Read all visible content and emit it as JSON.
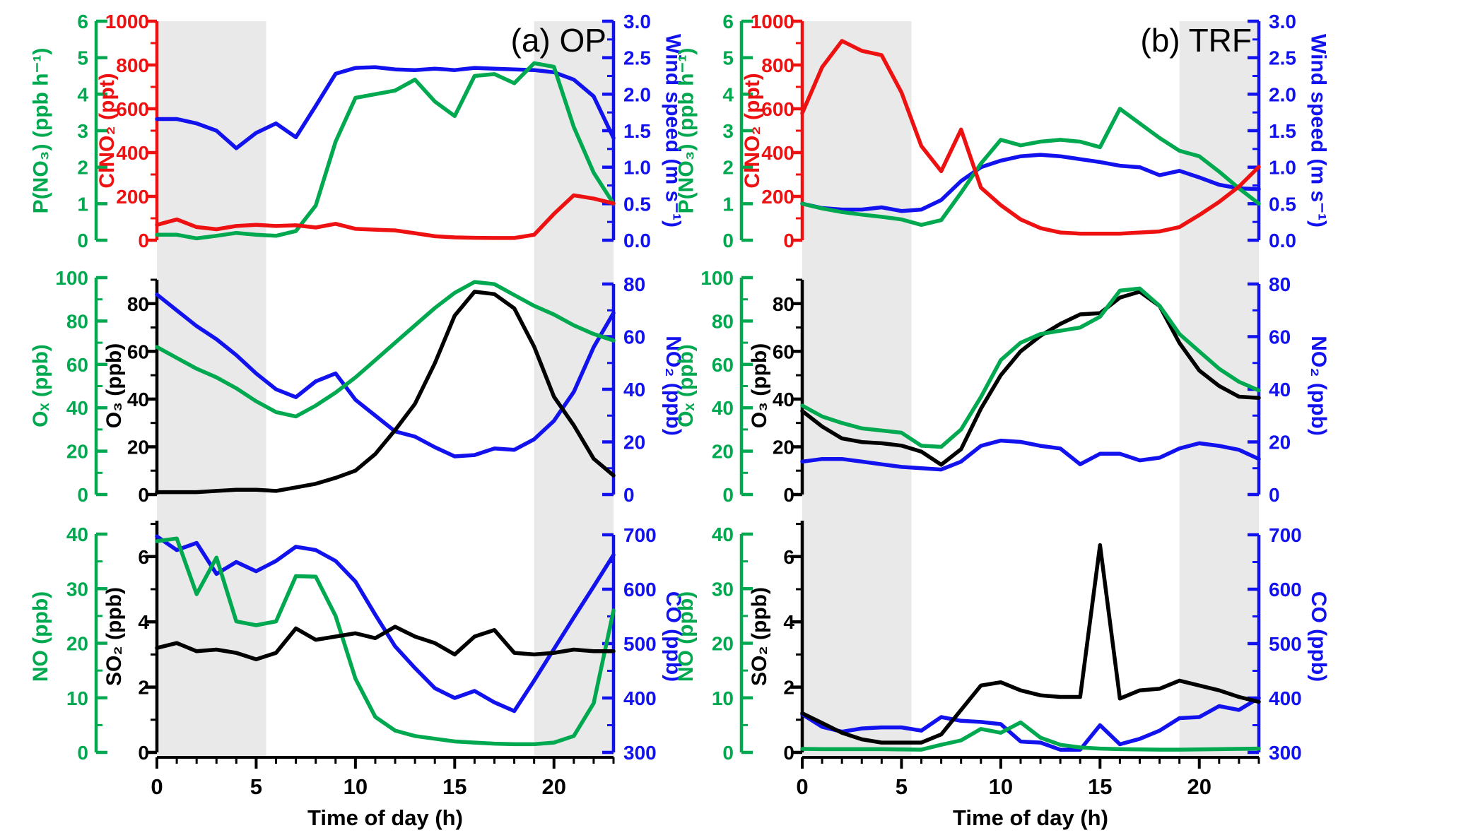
{
  "colors": {
    "green": "#00a94f",
    "red": "#ee1111",
    "blue": "#1212ee",
    "black": "#000000",
    "night": "#e9e9e9",
    "background": "#ffffff"
  },
  "chart_data": {
    "type": "line",
    "x": {
      "label": "Time of day (h)",
      "range": [
        0,
        23
      ],
      "major_ticks": [
        0,
        5,
        10,
        15,
        20
      ],
      "minor_step": 1
    },
    "hours": [
      0,
      1,
      2,
      3,
      4,
      5,
      6,
      7,
      8,
      9,
      10,
      11,
      12,
      13,
      14,
      15,
      16,
      17,
      18,
      19,
      20,
      21,
      22,
      23
    ],
    "night_shading_hours": [
      [
        0,
        5.5
      ],
      [
        19,
        23
      ]
    ],
    "panels": [
      {
        "id": "op-top",
        "column": 0,
        "row": 0,
        "title": "(a) OP",
        "axes": [
          {
            "id": "pno3",
            "side": "left_outer",
            "label": "P(NO₃) (ppb h⁻¹)",
            "color_key": "green",
            "min": 0,
            "max": 6,
            "majors": [
              0,
              1,
              2,
              3,
              4,
              5,
              6
            ],
            "minor_step": null,
            "top_offset": 0
          },
          {
            "id": "clno2",
            "side": "left_inner",
            "label": "ClNO₂ (ppt)",
            "color_key": "red",
            "min": 0,
            "max": 1000,
            "majors": [
              0,
              200,
              400,
              600,
              800,
              1000
            ],
            "minor_step": 100,
            "top_offset": 0
          },
          {
            "id": "wind",
            "side": "right",
            "label": "Wind speed (m s⁻¹)",
            "color_key": "blue",
            "min": 0,
            "max": 3,
            "majors": [
              0,
              0.5,
              1,
              1.5,
              2,
              2.5,
              3
            ],
            "minor_step": 0.25,
            "decimals": 1,
            "top_offset": 0
          }
        ],
        "series": [
          {
            "name": "Wind speed",
            "axis": "wind",
            "color_key": "blue",
            "values": [
              1.66,
              1.66,
              1.6,
              1.5,
              1.26,
              1.47,
              1.6,
              1.41,
              1.84,
              2.28,
              2.36,
              2.37,
              2.34,
              2.33,
              2.35,
              2.33,
              2.36,
              2.35,
              2.34,
              2.33,
              2.3,
              2.2,
              1.97,
              1.4
            ]
          },
          {
            "name": "P(NO3)",
            "axis": "pno3",
            "color_key": "green",
            "values": [
              0.15,
              0.15,
              0.05,
              0.12,
              0.2,
              0.15,
              0.12,
              0.25,
              0.95,
              2.7,
              3.9,
              4.0,
              4.1,
              4.4,
              3.8,
              3.4,
              4.5,
              4.55,
              4.3,
              4.85,
              4.75,
              3.1,
              1.85,
              1.0
            ]
          },
          {
            "name": "ClNO2",
            "axis": "clno2",
            "color_key": "red",
            "values": [
              70,
              95,
              60,
              50,
              65,
              70,
              65,
              68,
              58,
              75,
              52,
              48,
              45,
              32,
              18,
              13,
              11,
              10,
              10,
              25,
              120,
              205,
              190,
              168
            ]
          }
        ]
      },
      {
        "id": "op-mid",
        "column": 0,
        "row": 1,
        "title": "",
        "axes": [
          {
            "id": "ox",
            "side": "left_outer",
            "label": "Oₓ (ppb)",
            "color_key": "green",
            "min": 0,
            "max": 100,
            "majors": [
              0,
              20,
              40,
              60,
              80,
              100
            ],
            "minor_step": 10,
            "top_offset": 0
          },
          {
            "id": "o3",
            "side": "left_inner",
            "label": "O₃ (ppb)",
            "color_key": "black",
            "min": 0,
            "max": 90,
            "majors": [
              0,
              20,
              40,
              60,
              80
            ],
            "minor_step": 10,
            "top_offset": 3
          },
          {
            "id": "no2",
            "side": "right",
            "label": "NO₂ (ppb)",
            "color_key": "blue",
            "min": 0,
            "max": 80,
            "majors": [
              0,
              20,
              40,
              60,
              80
            ],
            "minor_step": 10,
            "top_offset": 9
          }
        ],
        "series": [
          {
            "name": "NO2",
            "axis": "no2",
            "color_key": "blue",
            "values": [
              76,
              70,
              64,
              59,
              53,
              46,
              40,
              37,
              43,
              46,
              36,
              30,
              24,
              22,
              18,
              14.5,
              15,
              17.5,
              17,
              21,
              28,
              39,
              56,
              69
            ]
          },
          {
            "name": "O3",
            "axis": "o3",
            "color_key": "black",
            "values": [
              1,
              1,
              1,
              1.5,
              2,
              2,
              1.5,
              3,
              4.5,
              7,
              10,
              17,
              27,
              38,
              55,
              75,
              85,
              84,
              78,
              62,
              41,
              29,
              15,
              8
            ]
          },
          {
            "name": "Ox",
            "axis": "ox",
            "color_key": "green",
            "values": [
              68,
              63,
              58,
              54,
              49,
              43,
              38,
              36,
              41,
              47,
              54,
              62,
              70,
              78,
              86,
              93,
              98,
              97,
              92,
              87,
              83,
              78,
              74,
              71
            ]
          }
        ]
      },
      {
        "id": "op-bottom",
        "column": 0,
        "row": 2,
        "title": "",
        "axes": [
          {
            "id": "no",
            "side": "left_outer",
            "label": "NO (ppb)",
            "color_key": "green",
            "min": 0,
            "max": 40,
            "majors": [
              0,
              10,
              20,
              30,
              40
            ],
            "minor_step": 5,
            "top_offset": 19
          },
          {
            "id": "so2",
            "side": "left_inner",
            "label": "SO₂ (ppb)",
            "color_key": "black",
            "min": 0,
            "max": 7.1,
            "majors": [
              0,
              2,
              4,
              6
            ],
            "minor_step": 1,
            "top_offset": 0
          },
          {
            "id": "co",
            "side": "right",
            "label": "CO (ppb)",
            "color_key": "blue",
            "min": 300,
            "max": 700,
            "majors": [
              300,
              400,
              500,
              600,
              700
            ],
            "minor_step": 50,
            "top_offset": 20
          }
        ],
        "series": [
          {
            "name": "CO",
            "axis": "co",
            "color_key": "blue",
            "values": [
              697,
              672,
              685,
              628,
              650,
              633,
              652,
              678,
              672,
              652,
              614,
              553,
              495,
              455,
              418,
              400,
              413,
              392,
              376,
              432,
              490,
              548,
              605,
              663
            ]
          },
          {
            "name": "NO",
            "axis": "no",
            "color_key": "green",
            "values": [
              38.7,
              39.2,
              29,
              35.7,
              24,
              23.3,
              24,
              32.3,
              32.2,
              25,
              13.5,
              6.5,
              4,
              3,
              2.5,
              2,
              1.8,
              1.6,
              1.5,
              1.5,
              1.8,
              3,
              9,
              26
            ]
          },
          {
            "name": "SO2",
            "axis": "so2",
            "color_key": "black",
            "values": [
              3.2,
              3.35,
              3.1,
              3.15,
              3.05,
              2.85,
              3.05,
              3.8,
              3.45,
              3.55,
              3.65,
              3.5,
              3.85,
              3.55,
              3.35,
              3.0,
              3.55,
              3.75,
              3.05,
              3.0,
              3.05,
              3.15,
              3.1,
              3.1
            ]
          }
        ]
      },
      {
        "id": "trf-top",
        "column": 1,
        "row": 0,
        "title": "(b) TRF",
        "axes": [
          {
            "id": "pno3",
            "side": "left_outer",
            "label": "P(NO₃) (ppb h⁻¹)",
            "color_key": "green",
            "min": 0,
            "max": 6,
            "majors": [
              0,
              1,
              2,
              3,
              4,
              5,
              6
            ],
            "minor_step": null,
            "top_offset": 0
          },
          {
            "id": "clno2",
            "side": "left_inner",
            "label": "ClNO₂ (ppt)",
            "color_key": "red",
            "min": 0,
            "max": 1000,
            "majors": [
              0,
              200,
              400,
              600,
              800,
              1000
            ],
            "minor_step": 100,
            "top_offset": 0
          },
          {
            "id": "wind",
            "side": "right",
            "label": "Wind speed (m s⁻¹)",
            "color_key": "blue",
            "min": 0,
            "max": 3,
            "majors": [
              0,
              0.5,
              1,
              1.5,
              2,
              2.5,
              3
            ],
            "minor_step": 0.25,
            "decimals": 1,
            "top_offset": 0
          }
        ],
        "series": [
          {
            "name": "Wind speed",
            "axis": "wind",
            "color_key": "blue",
            "values": [
              0.5,
              0.44,
              0.42,
              0.42,
              0.45,
              0.4,
              0.42,
              0.55,
              0.81,
              1.0,
              1.09,
              1.15,
              1.17,
              1.15,
              1.11,
              1.07,
              1.02,
              1.0,
              0.89,
              0.95,
              0.86,
              0.76,
              0.71,
              0.7
            ]
          },
          {
            "name": "P(NO3)",
            "axis": "pno3",
            "color_key": "green",
            "values": [
              1.0,
              0.87,
              0.77,
              0.7,
              0.64,
              0.57,
              0.42,
              0.55,
              1.3,
              2.1,
              2.75,
              2.6,
              2.7,
              2.75,
              2.7,
              2.55,
              3.6,
              3.2,
              2.8,
              2.45,
              2.3,
              1.88,
              1.42,
              1.0
            ]
          },
          {
            "name": "ClNO2",
            "axis": "clno2",
            "color_key": "red",
            "values": [
              580,
              790,
              910,
              865,
              845,
              675,
              430,
              315,
              505,
              240,
              160,
              95,
              55,
              35,
              30,
              30,
              30,
              35,
              40,
              60,
              115,
              175,
              245,
              335
            ]
          }
        ]
      },
      {
        "id": "trf-mid",
        "column": 1,
        "row": 1,
        "title": "",
        "axes": [
          {
            "id": "ox",
            "side": "left_outer",
            "label": "Oₓ (ppb)",
            "color_key": "green",
            "min": 0,
            "max": 100,
            "majors": [
              0,
              20,
              40,
              60,
              80,
              100
            ],
            "minor_step": 10,
            "top_offset": 0
          },
          {
            "id": "o3",
            "side": "left_inner",
            "label": "O₃ (ppb)",
            "color_key": "black",
            "min": 0,
            "max": 90,
            "majors": [
              0,
              20,
              40,
              60,
              80
            ],
            "minor_step": 10,
            "top_offset": 3
          },
          {
            "id": "no2",
            "side": "right",
            "label": "NO₂ (ppb)",
            "color_key": "blue",
            "min": 0,
            "max": 80,
            "majors": [
              0,
              20,
              40,
              60,
              80
            ],
            "minor_step": 10,
            "top_offset": 9
          }
        ],
        "series": [
          {
            "name": "NO2",
            "axis": "no2",
            "color_key": "blue",
            "values": [
              12.5,
              13.5,
              13.5,
              12.5,
              11.5,
              10.5,
              10,
              9.5,
              12.5,
              18.5,
              20.5,
              20,
              18.5,
              17.5,
              11.5,
              15.5,
              15.5,
              13,
              14,
              17.5,
              19.5,
              18.5,
              17,
              13.5
            ]
          },
          {
            "name": "O3",
            "axis": "o3",
            "color_key": "black",
            "values": [
              35,
              28.5,
              23.5,
              22,
              21.5,
              20.5,
              18,
              12.5,
              19,
              36,
              50,
              60,
              66.5,
              71.5,
              75.5,
              76,
              82.5,
              85,
              79,
              63.5,
              52,
              45.5,
              41,
              40.5
            ]
          },
          {
            "name": "Ox",
            "axis": "ox",
            "color_key": "green",
            "values": [
              41,
              36,
              33,
              30.5,
              29.5,
              28.5,
              22.5,
              22,
              30,
              45,
              62,
              70,
              74,
              75.5,
              77,
              82,
              94,
              95,
              87,
              74,
              66,
              58,
              52,
              48
            ]
          }
        ]
      },
      {
        "id": "trf-bottom",
        "column": 1,
        "row": 2,
        "title": "",
        "axes": [
          {
            "id": "no",
            "side": "left_outer",
            "label": "NO (ppb)",
            "color_key": "green",
            "min": 0,
            "max": 40,
            "majors": [
              0,
              10,
              20,
              30,
              40
            ],
            "minor_step": 5,
            "top_offset": 19
          },
          {
            "id": "so2",
            "side": "left_inner",
            "label": "SO₂ (ppb)",
            "color_key": "black",
            "min": 0,
            "max": 7.1,
            "majors": [
              0,
              2,
              4,
              6
            ],
            "minor_step": 1,
            "top_offset": 0
          },
          {
            "id": "co",
            "side": "right",
            "label": "CO (ppb)",
            "color_key": "blue",
            "min": 300,
            "max": 700,
            "majors": [
              300,
              400,
              500,
              600,
              700
            ],
            "minor_step": 50,
            "top_offset": 20
          }
        ],
        "series": [
          {
            "name": "CO",
            "axis": "co",
            "color_key": "blue",
            "values": [
              370,
              347,
              338,
              344,
              346,
              346,
              340,
              365,
              358,
              356,
              352,
              320,
              318,
              305,
              305,
              350,
              315,
              325,
              340,
              363,
              365,
              385,
              378,
              400
            ]
          },
          {
            "name": "NO",
            "axis": "no",
            "color_key": "green",
            "values": [
              0.65,
              0.6,
              0.6,
              0.6,
              0.6,
              0.55,
              0.5,
              1.4,
              2.2,
              4.3,
              3.6,
              5.5,
              2.7,
              1.4,
              0.9,
              0.7,
              0.6,
              0.55,
              0.5,
              0.5,
              0.55,
              0.6,
              0.65,
              0.7
            ]
          },
          {
            "name": "SO2",
            "axis": "so2",
            "color_key": "black",
            "values": [
              1.2,
              0.9,
              0.6,
              0.4,
              0.3,
              0.3,
              0.3,
              0.55,
              1.3,
              2.05,
              2.15,
              1.9,
              1.75,
              1.7,
              1.7,
              6.35,
              1.65,
              1.9,
              1.95,
              2.2,
              2.05,
              1.9,
              1.7,
              1.55
            ]
          }
        ]
      }
    ]
  }
}
